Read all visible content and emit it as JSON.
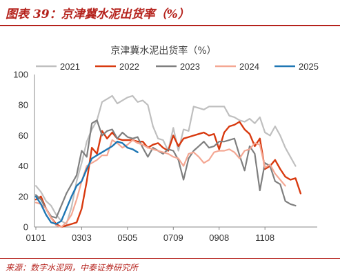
{
  "header": {
    "figure_label": "图表 39：京津冀水泥出货率（%）"
  },
  "footer": {
    "source": "来源：数字水泥网，中泰证券研究所"
  },
  "chart_data": {
    "type": "line",
    "title": "京津冀水泥出货率（%）",
    "xlabel": "",
    "ylabel": "",
    "ylim": [
      0,
      100
    ],
    "yticks": [
      0,
      20,
      40,
      60,
      80,
      100
    ],
    "x_tick_labels": [
      "0101",
      "0303",
      "0505",
      "0709",
      "0908",
      "1108"
    ],
    "x_tick_index": [
      0,
      9,
      18,
      27,
      36,
      45
    ],
    "x_count": 56,
    "grid": false,
    "legend_position": "top",
    "series": [
      {
        "name": "2021",
        "color": "#bfbfbf",
        "values": [
          27,
          23,
          17,
          14,
          8,
          4,
          2,
          13,
          30,
          42,
          56,
          64,
          70,
          82,
          84,
          86,
          81,
          83,
          85,
          86,
          82,
          83,
          80,
          66,
          58,
          57,
          50,
          65,
          50,
          64,
          63,
          79,
          78,
          77,
          79,
          79,
          79,
          79,
          73,
          72,
          70,
          69,
          71,
          68,
          72,
          62,
          60,
          66,
          60,
          52,
          46,
          40
        ]
      },
      {
        "name": "2022",
        "color": "#d83a10",
        "values": [
          18,
          20,
          12,
          6,
          2,
          0,
          1,
          2,
          3,
          12,
          30,
          52,
          48,
          63,
          58,
          62,
          58,
          57,
          57,
          57,
          56,
          56,
          52,
          54,
          55,
          52,
          50,
          60,
          53,
          58,
          59,
          60,
          61,
          62,
          60,
          61,
          51,
          62,
          66,
          67,
          69,
          64,
          61,
          53,
          58,
          38,
          40,
          44,
          38,
          33,
          31,
          32,
          22
        ]
      },
      {
        "name": "2023",
        "color": "#7f7f7f",
        "values": [
          21,
          18,
          12,
          7,
          6,
          14,
          22,
          28,
          34,
          50,
          46,
          68,
          70,
          60,
          63,
          64,
          58,
          62,
          59,
          58,
          59,
          52,
          46,
          52,
          50,
          48,
          51,
          50,
          44,
          31,
          45,
          50,
          53,
          56,
          52,
          53,
          56,
          56,
          57,
          58,
          47,
          37,
          53,
          48,
          24,
          42,
          40,
          30,
          28,
          17,
          15,
          14
        ]
      },
      {
        "name": "2024",
        "color": "#f4a793",
        "values": [
          16,
          15,
          12,
          6,
          1,
          0,
          3,
          8,
          18,
          30,
          40,
          42,
          44,
          47,
          47,
          57,
          55,
          52,
          54,
          57,
          55,
          54,
          52,
          51,
          50,
          49,
          48,
          46,
          45,
          40,
          48,
          49,
          46,
          42,
          44,
          49,
          50,
          50,
          51,
          49,
          45,
          50,
          51,
          55,
          54,
          39,
          41,
          35,
          31,
          27
        ]
      },
      {
        "name": "2025",
        "color": "#1f77b4",
        "values": [
          20,
          15,
          8,
          3,
          2,
          4,
          12,
          20,
          27,
          30,
          38,
          45,
          47,
          49,
          51,
          53,
          56,
          55,
          52,
          51,
          49
        ]
      }
    ]
  }
}
